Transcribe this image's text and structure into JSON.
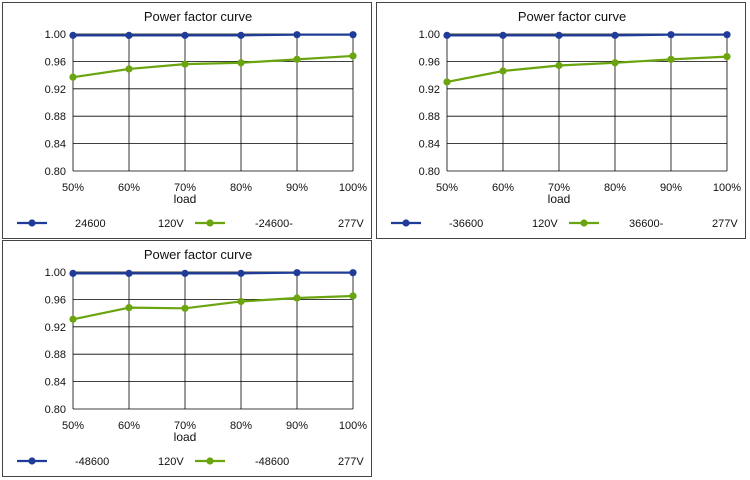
{
  "chart_data": [
    {
      "type": "line",
      "title": "Power factor curve",
      "xlabel": "load",
      "ylabel": "",
      "categories": [
        "50%",
        "60%",
        "70%",
        "80%",
        "90%",
        "100%"
      ],
      "yticks": [
        "1.00",
        "0.96",
        "0.92",
        "0.88",
        "0.84",
        "0.80"
      ],
      "ylim": [
        0.8,
        1.0
      ],
      "grid": true,
      "legend_position": "bottom",
      "series": [
        {
          "name": "24600",
          "name_suffix": "120V",
          "color": "#1f3c99",
          "values": [
            0.998,
            0.998,
            0.998,
            0.998,
            0.999,
            0.999
          ]
        },
        {
          "name": "-24600-",
          "name_suffix": "277V",
          "color": "#6aa40f",
          "values": [
            0.937,
            0.949,
            0.956,
            0.958,
            0.963,
            0.968
          ]
        }
      ]
    },
    {
      "type": "line",
      "title": "Power factor curve",
      "xlabel": "load",
      "ylabel": "",
      "categories": [
        "50%",
        "60%",
        "70%",
        "80%",
        "90%",
        "100%"
      ],
      "yticks": [
        "1.00",
        "0.96",
        "0.92",
        "0.88",
        "0.84",
        "0.80"
      ],
      "ylim": [
        0.8,
        1.0
      ],
      "grid": true,
      "legend_position": "bottom",
      "series": [
        {
          "name": "-36600",
          "name_suffix": "120V",
          "color": "#1f3c99",
          "values": [
            0.998,
            0.998,
            0.998,
            0.998,
            0.999,
            0.999
          ]
        },
        {
          "name": "36600-",
          "name_suffix": "277V",
          "color": "#6aa40f",
          "values": [
            0.93,
            0.946,
            0.954,
            0.958,
            0.963,
            0.967
          ]
        }
      ]
    },
    {
      "type": "line",
      "title": "Power factor curve",
      "xlabel": "load",
      "ylabel": "",
      "categories": [
        "50%",
        "60%",
        "70%",
        "80%",
        "90%",
        "100%"
      ],
      "yticks": [
        "1.00",
        "0.96",
        "0.92",
        "0.88",
        "0.84",
        "0.80"
      ],
      "ylim": [
        0.8,
        1.0
      ],
      "grid": true,
      "legend_position": "bottom",
      "series": [
        {
          "name": "-48600",
          "name_suffix": "120V",
          "color": "#1f3c99",
          "values": [
            0.998,
            0.998,
            0.998,
            0.998,
            0.999,
            0.999
          ]
        },
        {
          "name": "-48600",
          "name_suffix": "277V",
          "color": "#6aa40f",
          "values": [
            0.931,
            0.948,
            0.947,
            0.957,
            0.962,
            0.965
          ]
        }
      ]
    }
  ]
}
